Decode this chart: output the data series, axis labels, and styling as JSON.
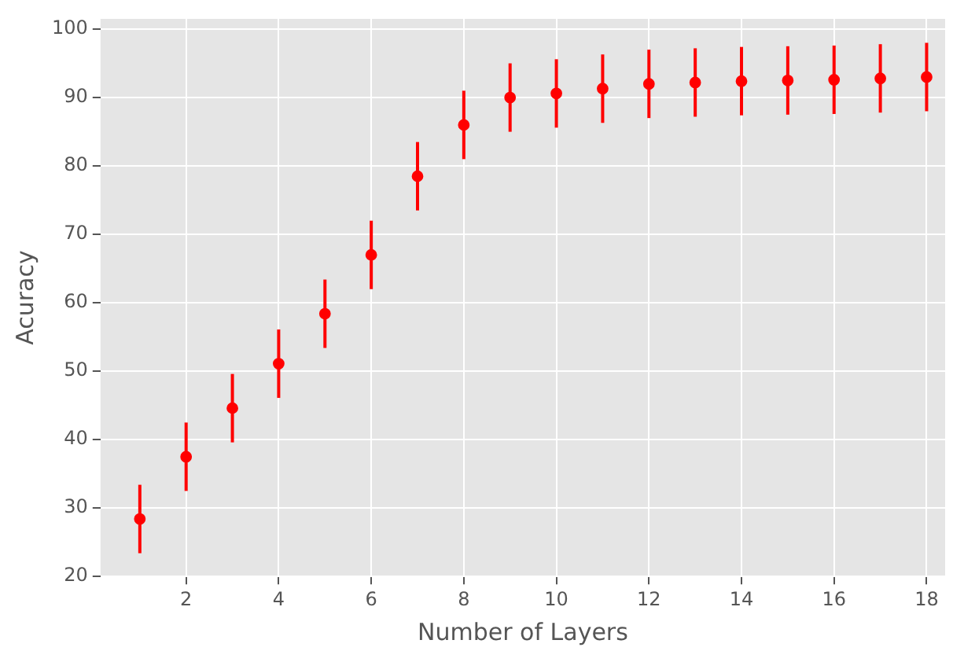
{
  "chart_data": {
    "type": "scatter",
    "xlabel": "Number of Layers",
    "ylabel": "Acuracy",
    "x": [
      1,
      2,
      3,
      4,
      5,
      6,
      7,
      8,
      9,
      10,
      11,
      12,
      13,
      14,
      15,
      16,
      17,
      18
    ],
    "series": [
      {
        "color": "#ff0000",
        "values": [
          28.4,
          37.5,
          44.6,
          51.1,
          58.4,
          67,
          78.5,
          86,
          90,
          90.6,
          91.3,
          92,
          92.2,
          92.4,
          92.5,
          92.6,
          92.8,
          93
        ],
        "errors": [
          5,
          5,
          5,
          5,
          5,
          5,
          5,
          5,
          5,
          5,
          5,
          5,
          5,
          5,
          5,
          5,
          5,
          5
        ]
      }
    ],
    "xlim": [
      0.15,
      18.4
    ],
    "xticks": [
      2,
      4,
      6,
      8,
      10,
      12,
      14,
      16,
      18
    ],
    "ylim": [
      20,
      101.5
    ],
    "yticks": [
      20,
      30,
      40,
      50,
      60,
      70,
      80,
      90,
      100
    ],
    "grid": true,
    "marker": "circle"
  }
}
